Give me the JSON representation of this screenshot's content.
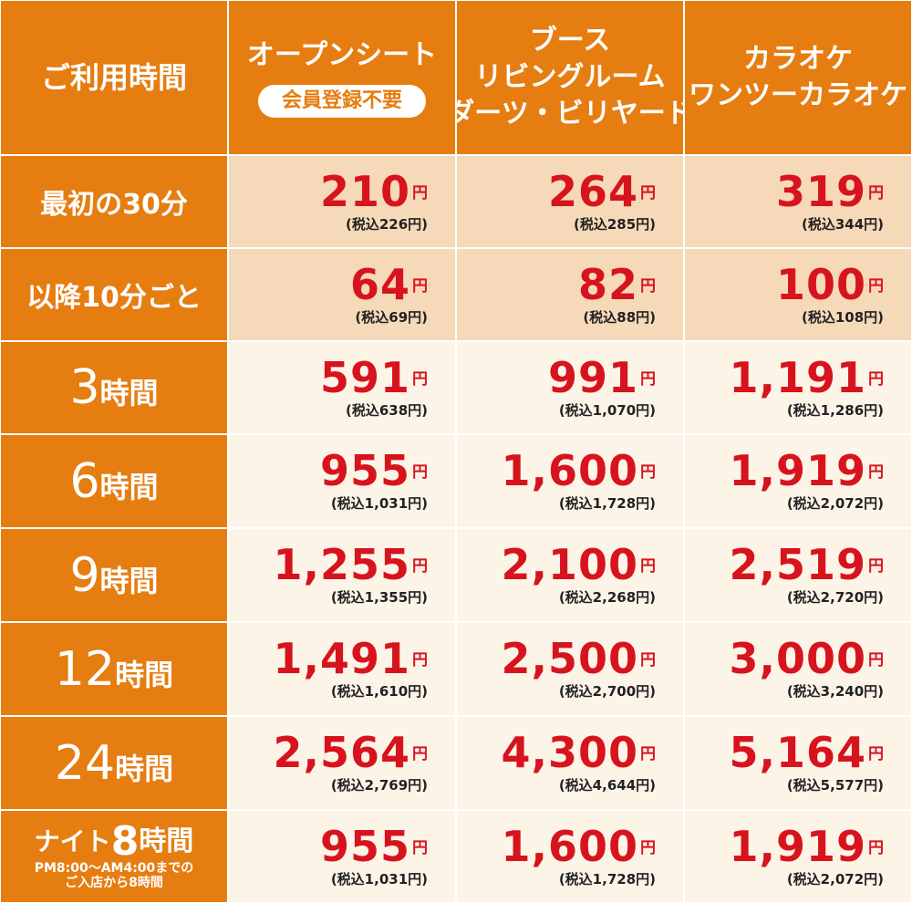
{
  "header": {
    "corner": "ご利用時間",
    "col1": {
      "title": "オープンシート",
      "badge": "会員登録不要"
    },
    "col2": {
      "lines": [
        "ブース",
        "リビングルーム",
        "ダーツ・ビリヤード"
      ]
    },
    "col3": {
      "lines": [
        "カラオケ",
        "ワンツーカラオケ"
      ]
    }
  },
  "rows": [
    {
      "label": "最初の30分",
      "style": "light",
      "prices": [
        {
          "value": "210",
          "unit": "円",
          "tax": "(税込226円)"
        },
        {
          "value": "264",
          "unit": "円",
          "tax": "(税込285円)"
        },
        {
          "value": "319",
          "unit": "円",
          "tax": "(税込344円)"
        }
      ]
    },
    {
      "label": "以降10分ごと",
      "style": "light",
      "prices": [
        {
          "value": "64",
          "unit": "円",
          "tax": "(税込69円)"
        },
        {
          "value": "82",
          "unit": "円",
          "tax": "(税込88円)"
        },
        {
          "value": "100",
          "unit": "円",
          "tax": "(税込108円)"
        }
      ]
    },
    {
      "label_num": "3",
      "label_unit": "時間",
      "style": "cream",
      "prices": [
        {
          "value": "591",
          "unit": "円",
          "tax": "(税込638円)"
        },
        {
          "value": "991",
          "unit": "円",
          "tax": "(税込1,070円)"
        },
        {
          "value": "1,191",
          "unit": "円",
          "tax": "(税込1,286円)"
        }
      ]
    },
    {
      "label_num": "6",
      "label_unit": "時間",
      "style": "cream",
      "prices": [
        {
          "value": "955",
          "unit": "円",
          "tax": "(税込1,031円)"
        },
        {
          "value": "1,600",
          "unit": "円",
          "tax": "(税込1,728円)"
        },
        {
          "value": "1,919",
          "unit": "円",
          "tax": "(税込2,072円)"
        }
      ]
    },
    {
      "label_num": "9",
      "label_unit": "時間",
      "style": "cream",
      "prices": [
        {
          "value": "1,255",
          "unit": "円",
          "tax": "(税込1,355円)"
        },
        {
          "value": "2,100",
          "unit": "円",
          "tax": "(税込2,268円)"
        },
        {
          "value": "2,519",
          "unit": "円",
          "tax": "(税込2,720円)"
        }
      ]
    },
    {
      "label_num": "12",
      "label_unit": "時間",
      "style": "cream",
      "prices": [
        {
          "value": "1,491",
          "unit": "円",
          "tax": "(税込1,610円)"
        },
        {
          "value": "2,500",
          "unit": "円",
          "tax": "(税込2,700円)"
        },
        {
          "value": "3,000",
          "unit": "円",
          "tax": "(税込3,240円)"
        }
      ]
    },
    {
      "label_num": "24",
      "label_unit": "時間",
      "style": "cream",
      "prices": [
        {
          "value": "2,564",
          "unit": "円",
          "tax": "(税込2,769円)"
        },
        {
          "value": "4,300",
          "unit": "円",
          "tax": "(税込4,644円)"
        },
        {
          "value": "5,164",
          "unit": "円",
          "tax": "(税込5,577円)"
        }
      ]
    },
    {
      "night": {
        "pre": "ナイト",
        "num": "8",
        "unit": "時間",
        "note1": "PM8:00～AM4:00までの",
        "note2": "ご入店から8時間"
      },
      "style": "cream",
      "prices": [
        {
          "value": "955",
          "unit": "円",
          "tax": "(税込1,031円)"
        },
        {
          "value": "1,600",
          "unit": "円",
          "tax": "(税込1,728円)"
        },
        {
          "value": "1,919",
          "unit": "円",
          "tax": "(税込2,072円)"
        }
      ]
    }
  ],
  "colors": {
    "orange": "#e67d10",
    "light": "#f6d9b8",
    "cream": "#fdf4e8",
    "price_red": "#d7141e"
  }
}
